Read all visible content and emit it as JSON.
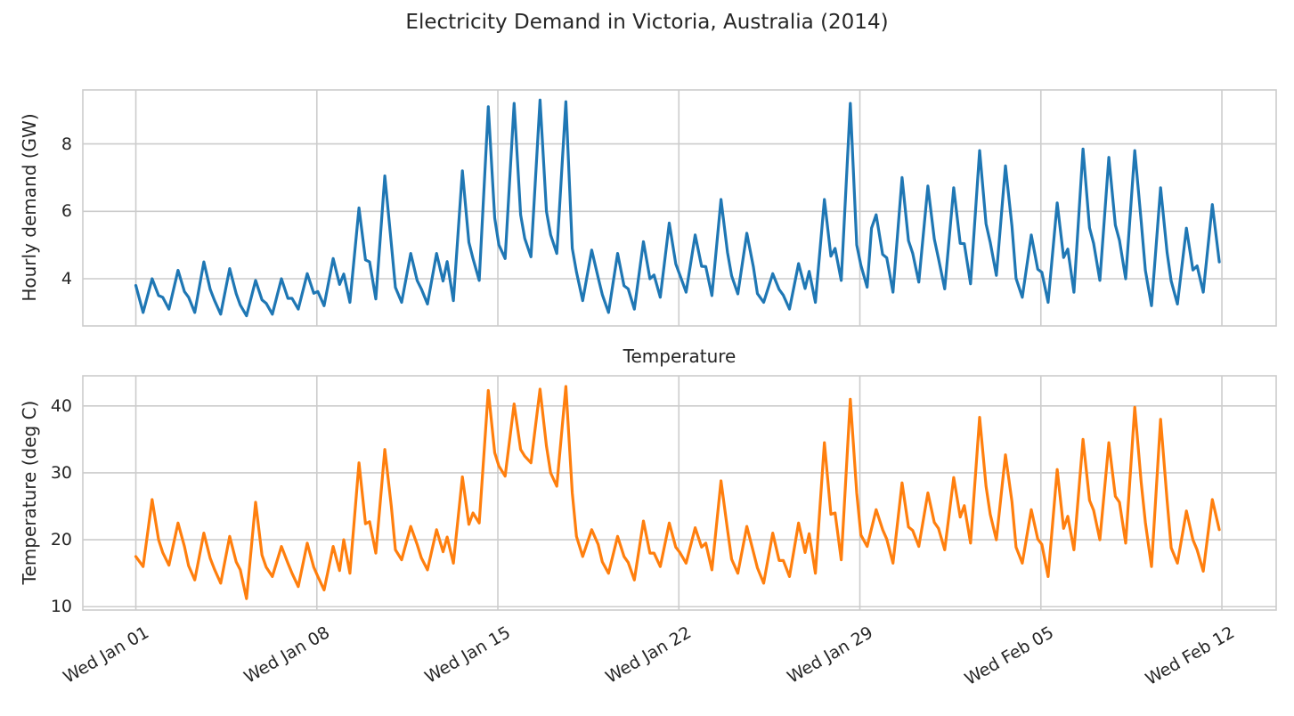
{
  "figure": {
    "title": "Electricity Demand in Victoria, Australia (2014)",
    "background_color": "#ffffff",
    "text_color": "#262626",
    "grid_color": "#cccccc"
  },
  "x_axis": {
    "xlim_days": [
      -2.05,
      44.1
    ],
    "tick_days": [
      0,
      7,
      14,
      21,
      28,
      35,
      42
    ],
    "tick_labels": [
      "Wed Jan 01",
      "Wed Jan 08",
      "Wed Jan 15",
      "Wed Jan 22",
      "Wed Jan 29",
      "Wed Feb 05",
      "Wed Feb 12"
    ],
    "tick_rotation_deg": 30
  },
  "chart_data": [
    {
      "type": "line",
      "name": "hourly-demand",
      "title": "",
      "ylabel": "Hourly demand (GW)",
      "color": "#1f77b4",
      "yticks": [
        4,
        6,
        8
      ],
      "ylim": [
        2.6,
        9.6
      ],
      "grid": true,
      "x_unit": "days since Jan 1 00:00",
      "points": [
        [
          0.0,
          3.8
        ],
        [
          0.28,
          3.0
        ],
        [
          0.63,
          4.0
        ],
        [
          0.88,
          3.5
        ],
        [
          1.04,
          3.45
        ],
        [
          1.28,
          3.1
        ],
        [
          1.63,
          4.25
        ],
        [
          1.88,
          3.62
        ],
        [
          2.04,
          3.45
        ],
        [
          2.28,
          3.0
        ],
        [
          2.63,
          4.5
        ],
        [
          2.88,
          3.68
        ],
        [
          3.04,
          3.36
        ],
        [
          3.28,
          2.95
        ],
        [
          3.63,
          4.3
        ],
        [
          3.88,
          3.56
        ],
        [
          4.04,
          3.22
        ],
        [
          4.28,
          2.9
        ],
        [
          4.63,
          3.95
        ],
        [
          4.88,
          3.37
        ],
        [
          5.04,
          3.27
        ],
        [
          5.28,
          2.95
        ],
        [
          5.63,
          4.0
        ],
        [
          5.88,
          3.42
        ],
        [
          6.04,
          3.42
        ],
        [
          6.28,
          3.1
        ],
        [
          6.63,
          4.15
        ],
        [
          6.88,
          3.57
        ],
        [
          7.04,
          3.62
        ],
        [
          7.28,
          3.2
        ],
        [
          7.63,
          4.6
        ],
        [
          7.88,
          3.83
        ],
        [
          8.04,
          4.14
        ],
        [
          8.28,
          3.3
        ],
        [
          8.63,
          6.1
        ],
        [
          8.88,
          4.56
        ],
        [
          9.04,
          4.5
        ],
        [
          9.28,
          3.4
        ],
        [
          9.63,
          7.05
        ],
        [
          9.88,
          5.04
        ],
        [
          10.04,
          3.74
        ],
        [
          10.28,
          3.3
        ],
        [
          10.63,
          4.75
        ],
        [
          10.88,
          3.95
        ],
        [
          11.04,
          3.7
        ],
        [
          11.28,
          3.25
        ],
        [
          11.63,
          4.75
        ],
        [
          11.88,
          3.93
        ],
        [
          12.04,
          4.51
        ],
        [
          12.28,
          3.35
        ],
        [
          12.63,
          7.2
        ],
        [
          12.88,
          5.08
        ],
        [
          13.04,
          4.6
        ],
        [
          13.28,
          3.95
        ],
        [
          13.63,
          9.1
        ],
        [
          13.88,
          5.8
        ],
        [
          14.04,
          5.0
        ],
        [
          14.28,
          4.6
        ],
        [
          14.63,
          9.2
        ],
        [
          14.88,
          5.9
        ],
        [
          15.04,
          5.2
        ],
        [
          15.28,
          4.65
        ],
        [
          15.63,
          9.3
        ],
        [
          15.88,
          6.0
        ],
        [
          16.04,
          5.3
        ],
        [
          16.28,
          4.75
        ],
        [
          16.63,
          9.25
        ],
        [
          16.88,
          4.9
        ],
        [
          17.04,
          4.2
        ],
        [
          17.28,
          3.35
        ],
        [
          17.63,
          4.85
        ],
        [
          17.88,
          4.03
        ],
        [
          18.04,
          3.53
        ],
        [
          18.28,
          3.0
        ],
        [
          18.63,
          4.75
        ],
        [
          18.88,
          3.79
        ],
        [
          19.04,
          3.7
        ],
        [
          19.28,
          3.1
        ],
        [
          19.63,
          5.1
        ],
        [
          19.88,
          4.0
        ],
        [
          20.04,
          4.11
        ],
        [
          20.28,
          3.45
        ],
        [
          20.63,
          5.65
        ],
        [
          20.88,
          4.44
        ],
        [
          21.04,
          4.11
        ],
        [
          21.28,
          3.6
        ],
        [
          21.63,
          5.3
        ],
        [
          21.88,
          4.37
        ],
        [
          22.04,
          4.36
        ],
        [
          22.28,
          3.5
        ],
        [
          22.63,
          6.35
        ],
        [
          22.88,
          4.78
        ],
        [
          23.04,
          4.09
        ],
        [
          23.28,
          3.55
        ],
        [
          23.63,
          5.35
        ],
        [
          23.88,
          4.36
        ],
        [
          24.04,
          3.56
        ],
        [
          24.28,
          3.3
        ],
        [
          24.63,
          4.15
        ],
        [
          24.88,
          3.68
        ],
        [
          25.04,
          3.51
        ],
        [
          25.28,
          3.1
        ],
        [
          25.63,
          4.45
        ],
        [
          25.88,
          3.71
        ],
        [
          26.04,
          4.22
        ],
        [
          26.28,
          3.3
        ],
        [
          26.63,
          6.35
        ],
        [
          26.88,
          4.67
        ],
        [
          27.04,
          4.9
        ],
        [
          27.28,
          3.95
        ],
        [
          27.63,
          9.2
        ],
        [
          27.88,
          5.0
        ],
        [
          28.04,
          4.4
        ],
        [
          28.28,
          3.75
        ],
        [
          28.45,
          5.5
        ],
        [
          28.63,
          5.9
        ],
        [
          28.88,
          4.72
        ],
        [
          29.04,
          4.62
        ],
        [
          29.28,
          3.6
        ],
        [
          29.63,
          7.0
        ],
        [
          29.88,
          5.13
        ],
        [
          30.04,
          4.76
        ],
        [
          30.28,
          3.9
        ],
        [
          30.63,
          6.75
        ],
        [
          30.88,
          5.18
        ],
        [
          31.04,
          4.6
        ],
        [
          31.28,
          3.7
        ],
        [
          31.63,
          6.7
        ],
        [
          31.88,
          5.05
        ],
        [
          32.04,
          5.04
        ],
        [
          32.28,
          3.85
        ],
        [
          32.63,
          7.8
        ],
        [
          32.88,
          5.63
        ],
        [
          33.04,
          5.08
        ],
        [
          33.28,
          4.1
        ],
        [
          33.63,
          7.35
        ],
        [
          33.88,
          5.56
        ],
        [
          34.04,
          4.01
        ],
        [
          34.28,
          3.45
        ],
        [
          34.63,
          5.3
        ],
        [
          34.88,
          4.28
        ],
        [
          35.04,
          4.19
        ],
        [
          35.28,
          3.3
        ],
        [
          35.63,
          6.25
        ],
        [
          35.88,
          4.63
        ],
        [
          36.04,
          4.88
        ],
        [
          36.28,
          3.6
        ],
        [
          36.63,
          7.85
        ],
        [
          36.88,
          5.51
        ],
        [
          37.04,
          5.05
        ],
        [
          37.28,
          3.95
        ],
        [
          37.63,
          7.6
        ],
        [
          37.88,
          5.59
        ],
        [
          38.04,
          5.14
        ],
        [
          38.28,
          4.0
        ],
        [
          38.63,
          7.8
        ],
        [
          38.88,
          5.71
        ],
        [
          39.04,
          4.25
        ],
        [
          39.28,
          3.2
        ],
        [
          39.63,
          6.7
        ],
        [
          39.88,
          4.78
        ],
        [
          40.04,
          3.93
        ],
        [
          40.28,
          3.25
        ],
        [
          40.63,
          5.5
        ],
        [
          40.88,
          4.26
        ],
        [
          41.04,
          4.38
        ],
        [
          41.28,
          3.6
        ],
        [
          41.63,
          6.2
        ],
        [
          41.9,
          4.5
        ]
      ]
    },
    {
      "type": "line",
      "name": "temperature",
      "title": "Temperature",
      "ylabel": "Temperature (deg C)",
      "color": "#ff7f0e",
      "yticks": [
        10,
        20,
        30,
        40
      ],
      "ylim": [
        9.5,
        44.5
      ],
      "grid": true,
      "x_unit": "days since Jan 1 00:00",
      "points": [
        [
          0.0,
          17.5
        ],
        [
          0.28,
          16.0
        ],
        [
          0.63,
          26.0
        ],
        [
          0.88,
          20.0
        ],
        [
          1.04,
          18.1
        ],
        [
          1.28,
          16.2
        ],
        [
          1.63,
          22.5
        ],
        [
          1.88,
          19.0
        ],
        [
          2.04,
          16.1
        ],
        [
          2.28,
          14.0
        ],
        [
          2.63,
          21.0
        ],
        [
          2.88,
          17.2
        ],
        [
          3.04,
          15.6
        ],
        [
          3.28,
          13.5
        ],
        [
          3.63,
          20.5
        ],
        [
          3.88,
          16.7
        ],
        [
          4.04,
          15.5
        ],
        [
          4.28,
          11.2
        ],
        [
          4.63,
          25.6
        ],
        [
          4.88,
          17.7
        ],
        [
          5.04,
          15.9
        ],
        [
          5.28,
          14.5
        ],
        [
          5.63,
          19.0
        ],
        [
          5.88,
          16.5
        ],
        [
          6.04,
          15.0
        ],
        [
          6.28,
          13.0
        ],
        [
          6.63,
          19.5
        ],
        [
          6.88,
          15.9
        ],
        [
          7.04,
          14.5
        ],
        [
          7.28,
          12.5
        ],
        [
          7.63,
          19.0
        ],
        [
          7.88,
          15.4
        ],
        [
          8.04,
          20.0
        ],
        [
          8.28,
          15.0
        ],
        [
          8.63,
          31.5
        ],
        [
          8.88,
          22.4
        ],
        [
          9.04,
          22.7
        ],
        [
          9.28,
          18.0
        ],
        [
          9.63,
          33.5
        ],
        [
          9.88,
          25.0
        ],
        [
          10.04,
          18.5
        ],
        [
          10.28,
          17.0
        ],
        [
          10.63,
          22.0
        ],
        [
          10.88,
          19.3
        ],
        [
          11.04,
          17.3
        ],
        [
          11.28,
          15.5
        ],
        [
          11.63,
          21.5
        ],
        [
          11.88,
          18.2
        ],
        [
          12.04,
          20.4
        ],
        [
          12.28,
          16.5
        ],
        [
          12.63,
          29.4
        ],
        [
          12.88,
          22.3
        ],
        [
          13.04,
          24.0
        ],
        [
          13.28,
          22.5
        ],
        [
          13.63,
          42.3
        ],
        [
          13.88,
          33.0
        ],
        [
          14.04,
          31.0
        ],
        [
          14.28,
          29.5
        ],
        [
          14.63,
          40.3
        ],
        [
          14.88,
          33.5
        ],
        [
          15.04,
          32.5
        ],
        [
          15.28,
          31.5
        ],
        [
          15.63,
          42.5
        ],
        [
          15.88,
          34.0
        ],
        [
          16.04,
          30.0
        ],
        [
          16.28,
          28.0
        ],
        [
          16.63,
          42.9
        ],
        [
          16.88,
          27.0
        ],
        [
          17.04,
          20.5
        ],
        [
          17.28,
          17.5
        ],
        [
          17.63,
          21.5
        ],
        [
          17.88,
          19.3
        ],
        [
          18.04,
          16.7
        ],
        [
          18.28,
          15.0
        ],
        [
          18.63,
          20.5
        ],
        [
          18.88,
          17.5
        ],
        [
          19.04,
          16.6
        ],
        [
          19.28,
          14.0
        ],
        [
          19.63,
          22.8
        ],
        [
          19.88,
          18.0
        ],
        [
          20.04,
          18.0
        ],
        [
          20.28,
          16.0
        ],
        [
          20.63,
          22.5
        ],
        [
          20.88,
          18.9
        ],
        [
          21.04,
          18.1
        ],
        [
          21.28,
          16.5
        ],
        [
          21.63,
          21.8
        ],
        [
          21.88,
          18.9
        ],
        [
          22.04,
          19.5
        ],
        [
          22.28,
          15.5
        ],
        [
          22.63,
          28.8
        ],
        [
          22.88,
          21.5
        ],
        [
          23.04,
          17.1
        ],
        [
          23.28,
          15.0
        ],
        [
          23.63,
          22.0
        ],
        [
          23.88,
          18.2
        ],
        [
          24.04,
          15.8
        ],
        [
          24.28,
          13.5
        ],
        [
          24.63,
          21.0
        ],
        [
          24.88,
          16.9
        ],
        [
          25.04,
          16.9
        ],
        [
          25.28,
          14.5
        ],
        [
          25.63,
          22.5
        ],
        [
          25.88,
          18.1
        ],
        [
          26.04,
          20.9
        ],
        [
          26.28,
          15.0
        ],
        [
          26.63,
          34.5
        ],
        [
          26.88,
          23.8
        ],
        [
          27.04,
          24.0
        ],
        [
          27.28,
          17.0
        ],
        [
          27.63,
          41.0
        ],
        [
          27.88,
          27.0
        ],
        [
          28.04,
          20.7
        ],
        [
          28.28,
          19.0
        ],
        [
          28.63,
          24.5
        ],
        [
          28.88,
          21.5
        ],
        [
          29.04,
          20.1
        ],
        [
          29.28,
          16.5
        ],
        [
          29.63,
          28.5
        ],
        [
          29.88,
          21.9
        ],
        [
          30.04,
          21.4
        ],
        [
          30.28,
          19.0
        ],
        [
          30.63,
          27.0
        ],
        [
          30.88,
          22.6
        ],
        [
          31.04,
          21.7
        ],
        [
          31.28,
          18.5
        ],
        [
          31.63,
          29.3
        ],
        [
          31.88,
          23.4
        ],
        [
          32.04,
          25.1
        ],
        [
          32.28,
          19.5
        ],
        [
          32.63,
          38.3
        ],
        [
          32.88,
          28.0
        ],
        [
          33.04,
          23.8
        ],
        [
          33.28,
          20.0
        ],
        [
          33.63,
          32.7
        ],
        [
          33.88,
          25.7
        ],
        [
          34.04,
          18.9
        ],
        [
          34.28,
          16.5
        ],
        [
          34.63,
          24.5
        ],
        [
          34.88,
          20.1
        ],
        [
          35.04,
          19.3
        ],
        [
          35.28,
          14.5
        ],
        [
          35.63,
          30.5
        ],
        [
          35.88,
          21.7
        ],
        [
          36.04,
          23.5
        ],
        [
          36.28,
          18.5
        ],
        [
          36.63,
          35.0
        ],
        [
          36.88,
          25.9
        ],
        [
          37.04,
          24.4
        ],
        [
          37.28,
          20.0
        ],
        [
          37.63,
          34.5
        ],
        [
          37.88,
          26.5
        ],
        [
          38.04,
          25.6
        ],
        [
          38.28,
          19.5
        ],
        [
          38.63,
          39.8
        ],
        [
          38.88,
          28.6
        ],
        [
          39.04,
          22.6
        ],
        [
          39.28,
          16.0
        ],
        [
          39.63,
          38.0
        ],
        [
          39.88,
          25.9
        ],
        [
          40.04,
          18.8
        ],
        [
          40.28,
          16.5
        ],
        [
          40.63,
          24.3
        ],
        [
          40.88,
          20.0
        ],
        [
          41.04,
          18.5
        ],
        [
          41.28,
          15.3
        ],
        [
          41.63,
          26.0
        ],
        [
          41.9,
          21.5
        ]
      ]
    }
  ]
}
